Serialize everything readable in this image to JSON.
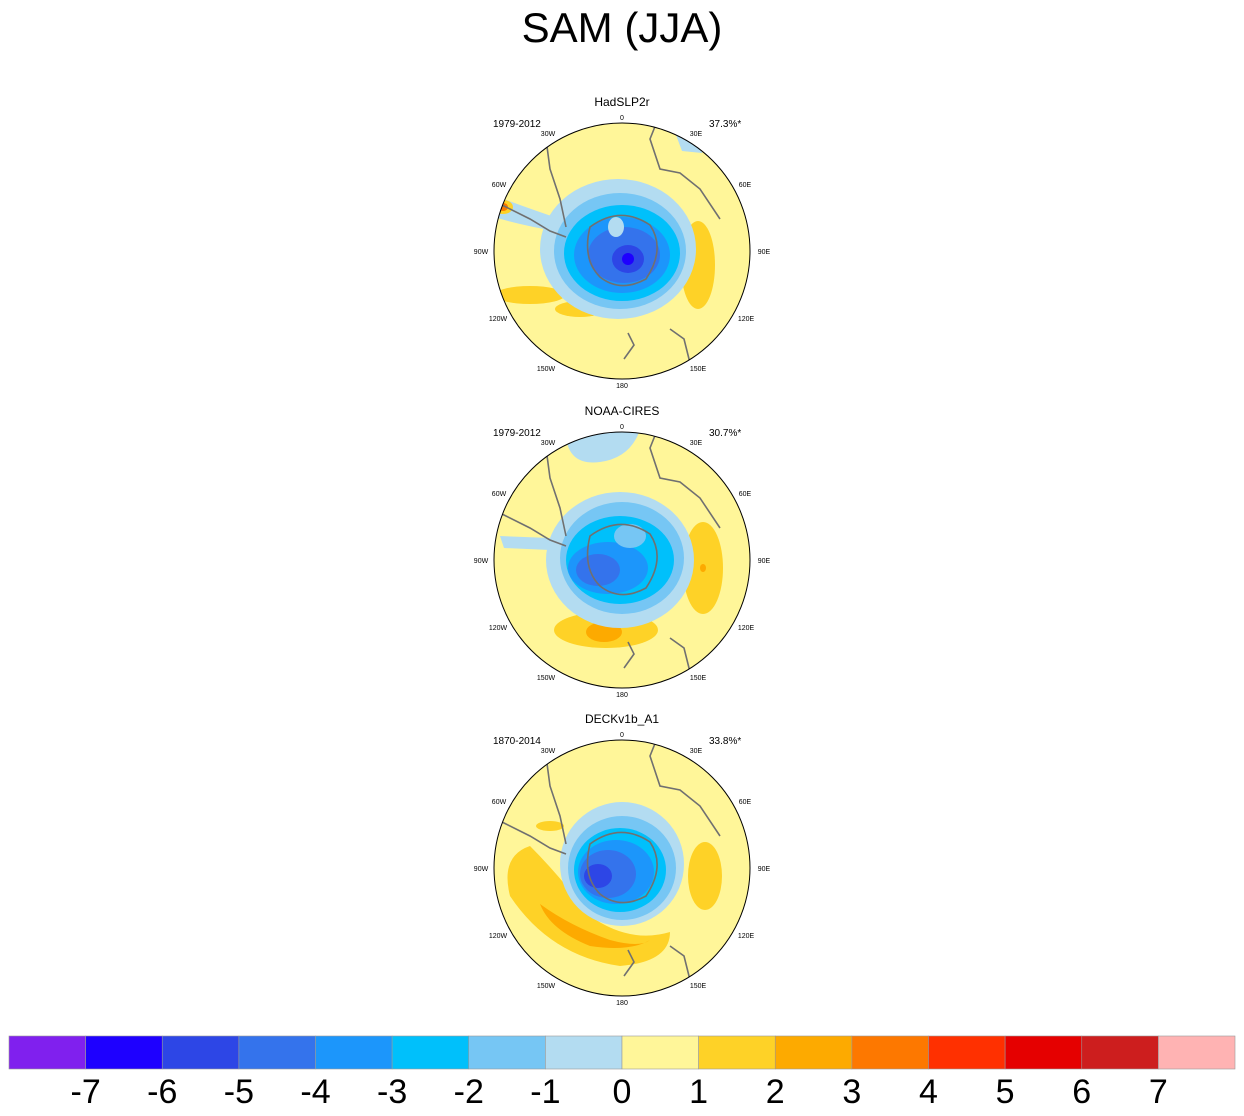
{
  "title": "SAM (JJA)",
  "panels": [
    {
      "name": "HadSLP2r",
      "period": "1979-2012",
      "percent": "37.3%*"
    },
    {
      "name": "NOAA-CIRES",
      "period": "1979-2012",
      "percent": "30.7%*"
    },
    {
      "name": "DECKv1b_A1",
      "period": "1870-2014",
      "percent": "33.8%*"
    }
  ],
  "longitude_labels": {
    "lon_0": "0",
    "lon_30e": "30E",
    "lon_60e": "60E",
    "lon_90e": "90E",
    "lon_120e": "120E",
    "lon_150e": "150E",
    "lon_180": "180",
    "lon_150w": "150W",
    "lon_120w": "120W",
    "lon_90w": "90W",
    "lon_60w": "60W",
    "lon_30w": "30W"
  },
  "colorbar": {
    "labels": [
      "-7",
      "-6",
      "-5",
      "-4",
      "-3",
      "-2",
      "-1",
      "0",
      "1",
      "2",
      "3",
      "4",
      "5",
      "6",
      "7"
    ],
    "colors": [
      "#8020ee",
      "#1e00ff",
      "#2d46e6",
      "#3473ec",
      "#1c96fb",
      "#00c0fb",
      "#76c6f4",
      "#b3dcf1",
      "#fff699",
      "#fed227",
      "#fdaa00",
      "#fd7800",
      "#ff3000",
      "#e50000",
      "#cd1e1e",
      "#ffb3b3"
    ]
  },
  "chart_data": {
    "type": "heatmap",
    "title": "SAM (JJA)",
    "projection": "south polar stereographic",
    "panels": [
      {
        "name": "HadSLP2r",
        "period": "1979-2012",
        "variance_explained": "37.3%*"
      },
      {
        "name": "NOAA-CIRES",
        "period": "1979-2012",
        "variance_explained": "30.7%*"
      },
      {
        "name": "DECKv1b_A1",
        "period": "1870-2014",
        "variance_explained": "33.8%*"
      }
    ],
    "colorbar_levels": [
      -7,
      -6,
      -5,
      -4,
      -3,
      -2,
      -1,
      0,
      1,
      2,
      3,
      4,
      5,
      6,
      7
    ]
  }
}
